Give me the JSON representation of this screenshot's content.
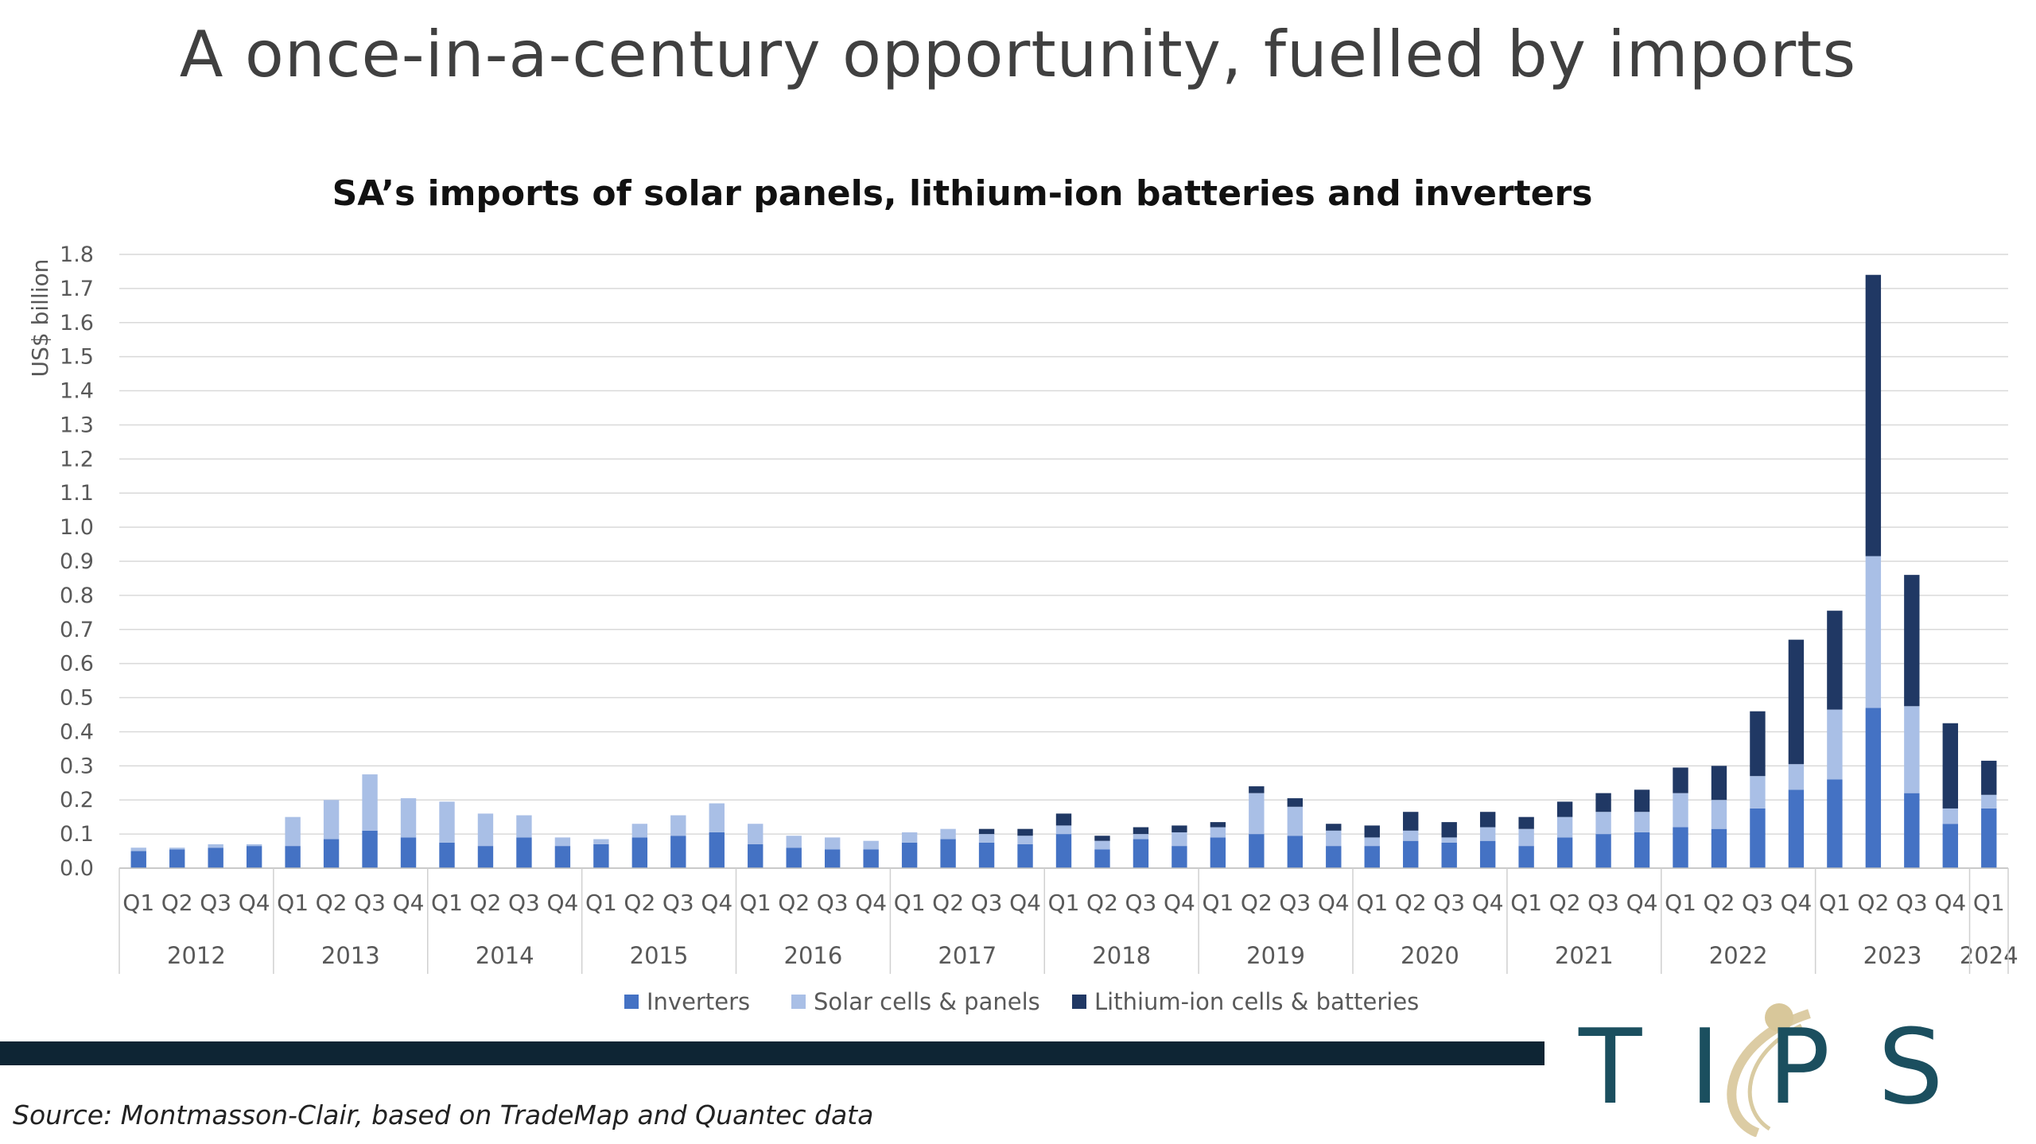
{
  "slide": {
    "title": "A once-in-a-century opportunity, fuelled by imports",
    "source": "Source: Montmasson-Clair, based on TradeMap and Quantec data",
    "logo_text": "TIPS"
  },
  "colors": {
    "inverters": "#4472c4",
    "solar": "#a9bfe6",
    "lithium": "#203864",
    "bottom_bar": "#0e2534",
    "logo": "#1b4f5f",
    "logo_gold": "#d8c79a"
  },
  "chart_data": {
    "type": "bar",
    "stacked": true,
    "title": "SA’s imports of solar panels, lithium-ion batteries and inverters",
    "ylabel": "US$ billion",
    "ylim": [
      0,
      1.8
    ],
    "yticks": [
      "0.0",
      "0.1",
      "0.2",
      "0.3",
      "0.4",
      "0.5",
      "0.6",
      "0.7",
      "0.8",
      "0.9",
      "1.0",
      "1.1",
      "1.2",
      "1.3",
      "1.4",
      "1.5",
      "1.6",
      "1.7",
      "1.8"
    ],
    "grid": true,
    "legend_position": "bottom",
    "categories": [
      "Q1",
      "Q2",
      "Q3",
      "Q4",
      "Q1",
      "Q2",
      "Q3",
      "Q4",
      "Q1",
      "Q2",
      "Q3",
      "Q4",
      "Q1",
      "Q2",
      "Q3",
      "Q4",
      "Q1",
      "Q2",
      "Q3",
      "Q4",
      "Q1",
      "Q2",
      "Q3",
      "Q4",
      "Q1",
      "Q2",
      "Q3",
      "Q4",
      "Q1",
      "Q2",
      "Q3",
      "Q4",
      "Q1",
      "Q2",
      "Q3",
      "Q4",
      "Q1",
      "Q2",
      "Q3",
      "Q4",
      "Q1",
      "Q2",
      "Q3",
      "Q4",
      "Q1",
      "Q2",
      "Q3",
      "Q4",
      "Q1"
    ],
    "years": [
      {
        "label": "2012",
        "quarters": 4
      },
      {
        "label": "2013",
        "quarters": 4
      },
      {
        "label": "2014",
        "quarters": 4
      },
      {
        "label": "2015",
        "quarters": 4
      },
      {
        "label": "2016",
        "quarters": 4
      },
      {
        "label": "2017",
        "quarters": 4
      },
      {
        "label": "2018",
        "quarters": 4
      },
      {
        "label": "2019",
        "quarters": 4
      },
      {
        "label": "2020",
        "quarters": 4
      },
      {
        "label": "2021",
        "quarters": 4
      },
      {
        "label": "2022",
        "quarters": 4
      },
      {
        "label": "2023",
        "quarters": 4
      },
      {
        "label": "2024",
        "quarters": 1
      }
    ],
    "series": [
      {
        "name": "Inverters",
        "color": "#4472c4",
        "values": [
          0.05,
          0.055,
          0.06,
          0.065,
          0.065,
          0.085,
          0.11,
          0.09,
          0.075,
          0.065,
          0.09,
          0.065,
          0.07,
          0.09,
          0.095,
          0.105,
          0.07,
          0.06,
          0.055,
          0.055,
          0.075,
          0.085,
          0.075,
          0.07,
          0.1,
          0.055,
          0.085,
          0.065,
          0.09,
          0.1,
          0.095,
          0.065,
          0.065,
          0.08,
          0.075,
          0.08,
          0.065,
          0.09,
          0.1,
          0.105,
          0.12,
          0.115,
          0.175,
          0.23,
          0.26,
          0.47,
          0.22,
          0.13,
          0.175
        ]
      },
      {
        "name": "Solar cells & panels",
        "color": "#a9bfe6",
        "values": [
          0.01,
          0.005,
          0.01,
          0.005,
          0.085,
          0.115,
          0.165,
          0.115,
          0.12,
          0.095,
          0.065,
          0.025,
          0.015,
          0.04,
          0.06,
          0.085,
          0.06,
          0.035,
          0.035,
          0.025,
          0.03,
          0.03,
          0.025,
          0.025,
          0.025,
          0.025,
          0.015,
          0.04,
          0.03,
          0.12,
          0.085,
          0.045,
          0.025,
          0.03,
          0.015,
          0.04,
          0.05,
          0.06,
          0.065,
          0.06,
          0.1,
          0.085,
          0.095,
          0.075,
          0.205,
          0.445,
          0.255,
          0.045,
          0.04
        ]
      },
      {
        "name": "Lithium-ion cells & batteries",
        "color": "#203864",
        "values": [
          0,
          0,
          0,
          0,
          0,
          0,
          0,
          0,
          0,
          0,
          0,
          0,
          0,
          0,
          0,
          0,
          0,
          0,
          0,
          0,
          0,
          0,
          0.015,
          0.02,
          0.035,
          0.015,
          0.02,
          0.02,
          0.015,
          0.02,
          0.025,
          0.02,
          0.035,
          0.055,
          0.045,
          0.045,
          0.035,
          0.045,
          0.055,
          0.065,
          0.075,
          0.1,
          0.19,
          0.365,
          0.29,
          0.825,
          0.385,
          0.25,
          0.1
        ]
      }
    ]
  }
}
